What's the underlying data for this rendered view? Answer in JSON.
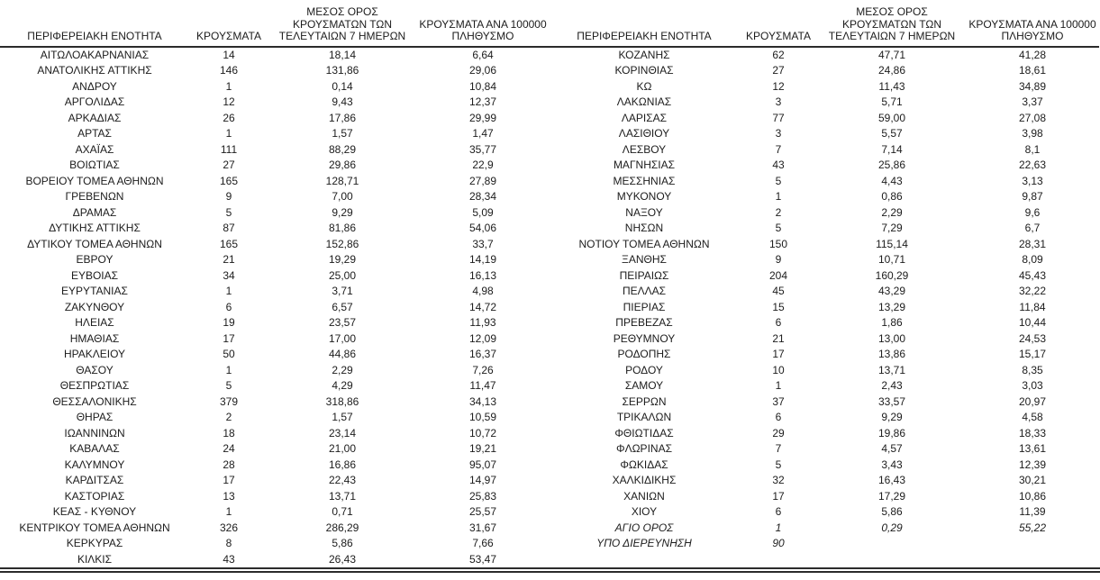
{
  "columns": {
    "region": "ΠΕΡΙΦΕΡΕΙΑΚΗ ΕΝΟΤΗΤΑ",
    "cases": "ΚΡΟΥΣΜΑΤΑ",
    "avg7_lines": [
      "ΜΕΣΟΣ ΟΡΟΣ",
      "ΚΡΟΥΣΜΑΤΩΝ ΤΩΝ",
      "ΤΕΛΕΥΤΑΙΩΝ 7 ΗΜΕΡΩΝ"
    ],
    "per100k_lines": [
      "ΚΡΟΥΣΜΑΤΑ ΑΝΑ 100000",
      "ΠΛΗΘΥΣΜΟ"
    ]
  },
  "tables": {
    "left": [
      {
        "region": "ΑΙΤΩΛΟΑΚΑΡΝΑΝΙΑΣ",
        "cases": "14",
        "avg7": "18,14",
        "per100k": "6,64"
      },
      {
        "region": "ΑΝΑΤΟΛΙΚΗΣ ΑΤΤΙΚΗΣ",
        "cases": "146",
        "avg7": "131,86",
        "per100k": "29,06"
      },
      {
        "region": "ΑΝΔΡΟΥ",
        "cases": "1",
        "avg7": "0,14",
        "per100k": "10,84"
      },
      {
        "region": "ΑΡΓΟΛΙΔΑΣ",
        "cases": "12",
        "avg7": "9,43",
        "per100k": "12,37"
      },
      {
        "region": "ΑΡΚΑΔΙΑΣ",
        "cases": "26",
        "avg7": "17,86",
        "per100k": "29,99"
      },
      {
        "region": "ΑΡΤΑΣ",
        "cases": "1",
        "avg7": "1,57",
        "per100k": "1,47"
      },
      {
        "region": "ΑΧΑΪΑΣ",
        "cases": "111",
        "avg7": "88,29",
        "per100k": "35,77"
      },
      {
        "region": "ΒΟΙΩΤΙΑΣ",
        "cases": "27",
        "avg7": "29,86",
        "per100k": "22,9"
      },
      {
        "region": "ΒΟΡΕΙΟΥ ΤΟΜΕΑ ΑΘΗΝΩΝ",
        "cases": "165",
        "avg7": "128,71",
        "per100k": "27,89"
      },
      {
        "region": "ΓΡΕΒΕΝΩΝ",
        "cases": "9",
        "avg7": "7,00",
        "per100k": "28,34"
      },
      {
        "region": "ΔΡΑΜΑΣ",
        "cases": "5",
        "avg7": "9,29",
        "per100k": "5,09"
      },
      {
        "region": "ΔΥΤΙΚΗΣ ΑΤΤΙΚΗΣ",
        "cases": "87",
        "avg7": "81,86",
        "per100k": "54,06"
      },
      {
        "region": "ΔΥΤΙΚΟΥ ΤΟΜΕΑ ΑΘΗΝΩΝ",
        "cases": "165",
        "avg7": "152,86",
        "per100k": "33,7"
      },
      {
        "region": "ΕΒΡΟΥ",
        "cases": "21",
        "avg7": "19,29",
        "per100k": "14,19"
      },
      {
        "region": "ΕΥΒΟΙΑΣ",
        "cases": "34",
        "avg7": "25,00",
        "per100k": "16,13"
      },
      {
        "region": "ΕΥΡΥΤΑΝΙΑΣ",
        "cases": "1",
        "avg7": "3,71",
        "per100k": "4,98"
      },
      {
        "region": "ΖΑΚΥΝΘΟΥ",
        "cases": "6",
        "avg7": "6,57",
        "per100k": "14,72"
      },
      {
        "region": "ΗΛΕΙΑΣ",
        "cases": "19",
        "avg7": "23,57",
        "per100k": "11,93"
      },
      {
        "region": "ΗΜΑΘΙΑΣ",
        "cases": "17",
        "avg7": "17,00",
        "per100k": "12,09"
      },
      {
        "region": "ΗΡΑΚΛΕΙΟΥ",
        "cases": "50",
        "avg7": "44,86",
        "per100k": "16,37"
      },
      {
        "region": "ΘΑΣΟΥ",
        "cases": "1",
        "avg7": "2,29",
        "per100k": "7,26"
      },
      {
        "region": "ΘΕΣΠΡΩΤΙΑΣ",
        "cases": "5",
        "avg7": "4,29",
        "per100k": "11,47"
      },
      {
        "region": "ΘΕΣΣΑΛΟΝΙΚΗΣ",
        "cases": "379",
        "avg7": "318,86",
        "per100k": "34,13"
      },
      {
        "region": "ΘΗΡΑΣ",
        "cases": "2",
        "avg7": "1,57",
        "per100k": "10,59"
      },
      {
        "region": "ΙΩΑΝΝΙΝΩΝ",
        "cases": "18",
        "avg7": "23,14",
        "per100k": "10,72"
      },
      {
        "region": "ΚΑΒΑΛΑΣ",
        "cases": "24",
        "avg7": "21,00",
        "per100k": "19,21"
      },
      {
        "region": "ΚΑΛΥΜΝΟΥ",
        "cases": "28",
        "avg7": "16,86",
        "per100k": "95,07"
      },
      {
        "region": "ΚΑΡΔΙΤΣΑΣ",
        "cases": "17",
        "avg7": "22,43",
        "per100k": "14,97"
      },
      {
        "region": "ΚΑΣΤΟΡΙΑΣ",
        "cases": "13",
        "avg7": "13,71",
        "per100k": "25,83"
      },
      {
        "region": "ΚΕΑΣ - ΚΥΘΝΟΥ",
        "cases": "1",
        "avg7": "0,71",
        "per100k": "25,57"
      },
      {
        "region": "ΚΕΝΤΡΙΚΟΥ ΤΟΜΕΑ ΑΘΗΝΩΝ",
        "cases": "326",
        "avg7": "286,29",
        "per100k": "31,67"
      },
      {
        "region": "ΚΕΡΚΥΡΑΣ",
        "cases": "8",
        "avg7": "5,86",
        "per100k": "7,66"
      },
      {
        "region": "ΚΙΛΚΙΣ",
        "cases": "43",
        "avg7": "26,43",
        "per100k": "53,47"
      }
    ],
    "right": [
      {
        "region": "ΚΟΖΑΝΗΣ",
        "cases": "62",
        "avg7": "47,71",
        "per100k": "41,28"
      },
      {
        "region": "ΚΟΡΙΝΘΙΑΣ",
        "cases": "27",
        "avg7": "24,86",
        "per100k": "18,61"
      },
      {
        "region": "ΚΩ",
        "cases": "12",
        "avg7": "11,43",
        "per100k": "34,89"
      },
      {
        "region": "ΛΑΚΩΝΙΑΣ",
        "cases": "3",
        "avg7": "5,71",
        "per100k": "3,37"
      },
      {
        "region": "ΛΑΡΙΣΑΣ",
        "cases": "77",
        "avg7": "59,00",
        "per100k": "27,08"
      },
      {
        "region": "ΛΑΣΙΘΙΟΥ",
        "cases": "3",
        "avg7": "5,57",
        "per100k": "3,98"
      },
      {
        "region": "ΛΕΣΒΟΥ",
        "cases": "7",
        "avg7": "7,14",
        "per100k": "8,1"
      },
      {
        "region": "ΜΑΓΝΗΣΙΑΣ",
        "cases": "43",
        "avg7": "25,86",
        "per100k": "22,63"
      },
      {
        "region": "ΜΕΣΣΗΝΙΑΣ",
        "cases": "5",
        "avg7": "4,43",
        "per100k": "3,13"
      },
      {
        "region": "ΜΥΚΟΝΟΥ",
        "cases": "1",
        "avg7": "0,86",
        "per100k": "9,87"
      },
      {
        "region": "ΝΑΞΟΥ",
        "cases": "2",
        "avg7": "2,29",
        "per100k": "9,6"
      },
      {
        "region": "ΝΗΣΩΝ",
        "cases": "5",
        "avg7": "7,29",
        "per100k": "6,7"
      },
      {
        "region": "ΝΟΤΙΟΥ ΤΟΜΕΑ ΑΘΗΝΩΝ",
        "cases": "150",
        "avg7": "115,14",
        "per100k": "28,31"
      },
      {
        "region": "ΞΑΝΘΗΣ",
        "cases": "9",
        "avg7": "10,71",
        "per100k": "8,09"
      },
      {
        "region": "ΠΕΙΡΑΙΩΣ",
        "cases": "204",
        "avg7": "160,29",
        "per100k": "45,43"
      },
      {
        "region": "ΠΕΛΛΑΣ",
        "cases": "45",
        "avg7": "43,29",
        "per100k": "32,22"
      },
      {
        "region": "ΠΙΕΡΙΑΣ",
        "cases": "15",
        "avg7": "13,29",
        "per100k": "11,84"
      },
      {
        "region": "ΠΡΕΒΕΖΑΣ",
        "cases": "6",
        "avg7": "1,86",
        "per100k": "10,44"
      },
      {
        "region": "ΡΕΘΥΜΝΟΥ",
        "cases": "21",
        "avg7": "13,00",
        "per100k": "24,53"
      },
      {
        "region": "ΡΟΔΟΠΗΣ",
        "cases": "17",
        "avg7": "13,86",
        "per100k": "15,17"
      },
      {
        "region": "ΡΟΔΟΥ",
        "cases": "10",
        "avg7": "13,71",
        "per100k": "8,35"
      },
      {
        "region": "ΣΑΜΟΥ",
        "cases": "1",
        "avg7": "2,43",
        "per100k": "3,03"
      },
      {
        "region": "ΣΕΡΡΩΝ",
        "cases": "37",
        "avg7": "33,57",
        "per100k": "20,97"
      },
      {
        "region": "ΤΡΙΚΑΛΩΝ",
        "cases": "6",
        "avg7": "9,29",
        "per100k": "4,58"
      },
      {
        "region": "ΦΘΙΩΤΙΔΑΣ",
        "cases": "29",
        "avg7": "19,86",
        "per100k": "18,33"
      },
      {
        "region": "ΦΛΩΡΙΝΑΣ",
        "cases": "7",
        "avg7": "4,57",
        "per100k": "13,61"
      },
      {
        "region": "ΦΩΚΙΔΑΣ",
        "cases": "5",
        "avg7": "3,43",
        "per100k": "12,39"
      },
      {
        "region": "ΧΑΛΚΙΔΙΚΗΣ",
        "cases": "32",
        "avg7": "16,43",
        "per100k": "30,21"
      },
      {
        "region": "ΧΑΝΙΩΝ",
        "cases": "17",
        "avg7": "17,29",
        "per100k": "10,86"
      },
      {
        "region": "ΧΙΟΥ",
        "cases": "6",
        "avg7": "5,86",
        "per100k": "11,39"
      },
      {
        "region": "ΑΓΙΟ ΟΡΟΣ",
        "cases": "1",
        "avg7": "0,29",
        "per100k": "55,22",
        "italic": true
      },
      {
        "region": "ΥΠΟ ΔΙΕΡΕΥΝΗΣΗ",
        "cases": "90",
        "avg7": "",
        "per100k": "",
        "italic": true
      }
    ]
  }
}
